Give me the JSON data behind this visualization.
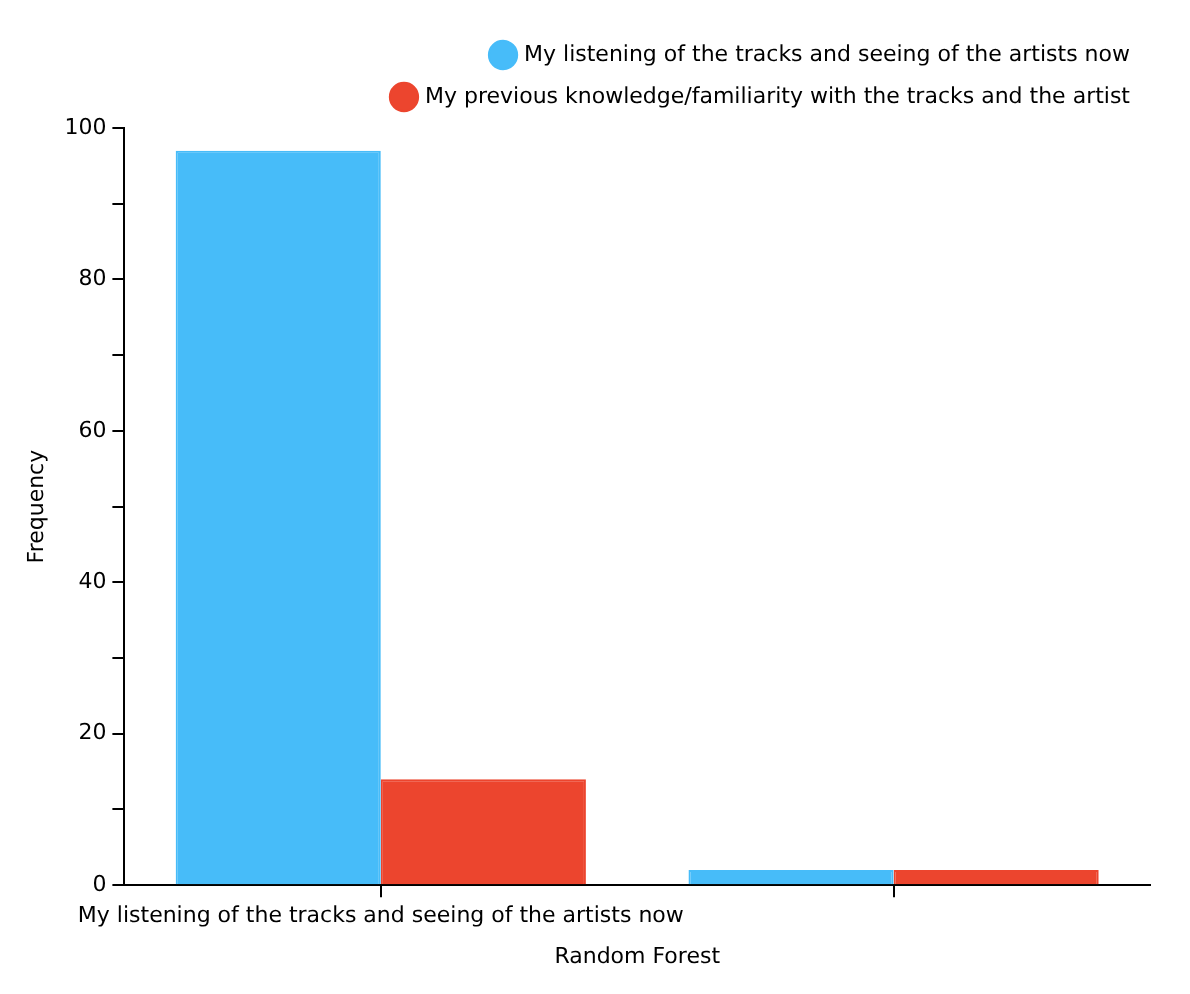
{
  "chart_data": {
    "type": "bar",
    "xlabel": "Random Forest",
    "ylabel": "Frequency",
    "categories": [
      "My listening of the tracks and seeing of the artists now",
      null
    ],
    "series": [
      {
        "name": "My listening of the tracks and seeing of the artists now",
        "color": "#47bcf9",
        "values": [
          97,
          2
        ]
      },
      {
        "name": "My previous knowledge/familiarity with the tracks and the artist",
        "color": "#ec452e",
        "values": [
          14,
          2
        ]
      }
    ],
    "ylim": [
      0,
      100
    ],
    "yticks": [
      0,
      {
        "value": 10,
        "label": null
      },
      20,
      {
        "value": 30,
        "label": null
      },
      40,
      {
        "value": 50,
        "label": null
      },
      60,
      {
        "value": 70,
        "label": null
      },
      80,
      {
        "value": 90,
        "label": null
      },
      100
    ],
    "grid": false,
    "legend": "top right"
  }
}
